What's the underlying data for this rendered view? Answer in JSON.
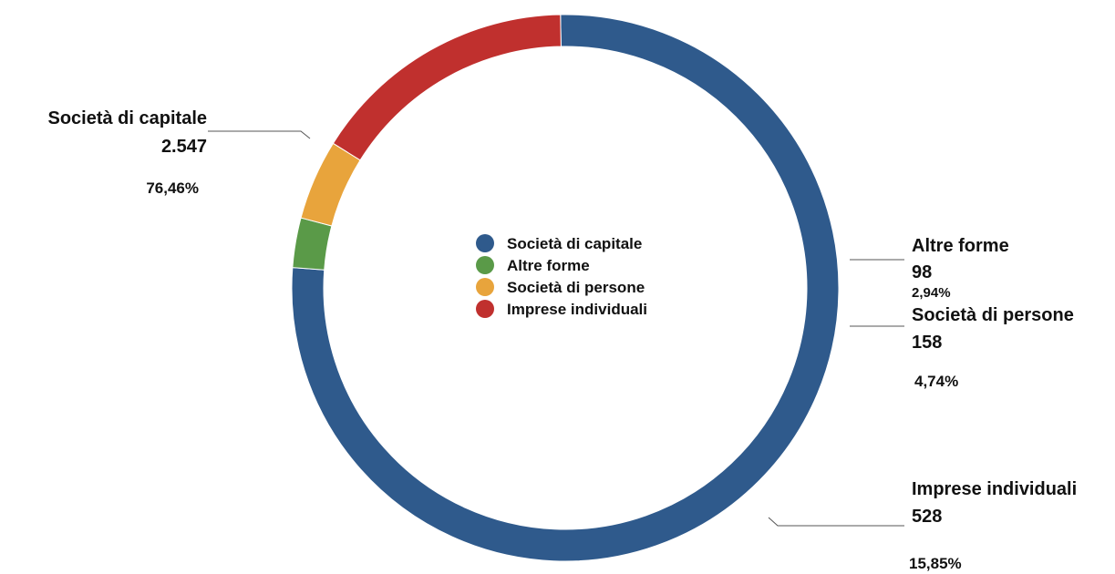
{
  "chart_data": {
    "type": "pie",
    "donut": true,
    "legend_position": "center",
    "slices": [
      {
        "name": "Società di capitale",
        "value": 2547,
        "value_label": "2.547",
        "percent_label": "76,46%",
        "color": "#2f5a8c"
      },
      {
        "name": "Altre forme",
        "value": 98,
        "value_label": "98",
        "percent_label": "2,94%",
        "color": "#5a9a48"
      },
      {
        "name": "Società di persone",
        "value": 158,
        "value_label": "158",
        "percent_label": "4,74%",
        "color": "#e8a43c"
      },
      {
        "name": "Imprese individuali",
        "value": 528,
        "value_label": "528",
        "percent_label": "15,85%",
        "color": "#c0302e"
      }
    ]
  }
}
